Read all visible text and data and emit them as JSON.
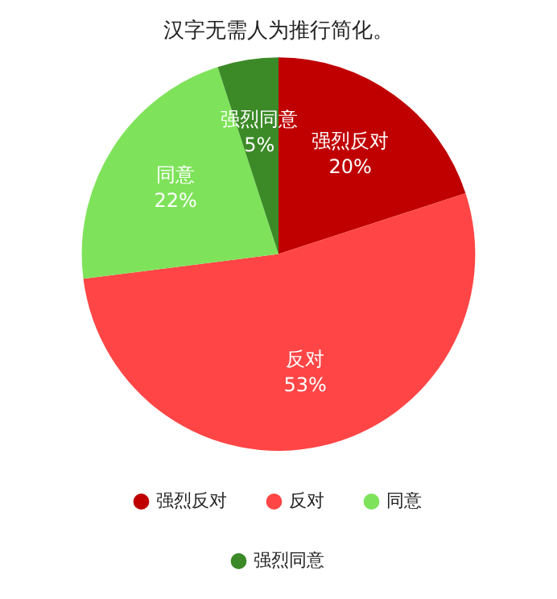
{
  "chart_data": {
    "type": "pie",
    "title": "汉字无需人为推行简化。",
    "categories": [
      "强烈反对",
      "反对",
      "同意",
      "强烈同意"
    ],
    "values": [
      20,
      53,
      22,
      5
    ],
    "value_labels": [
      "20%",
      "53%",
      "22%",
      "5%"
    ],
    "colors": [
      "#c00000",
      "#ff4545",
      "#7ee35a",
      "#3b8a27"
    ],
    "legend": "bottom"
  }
}
